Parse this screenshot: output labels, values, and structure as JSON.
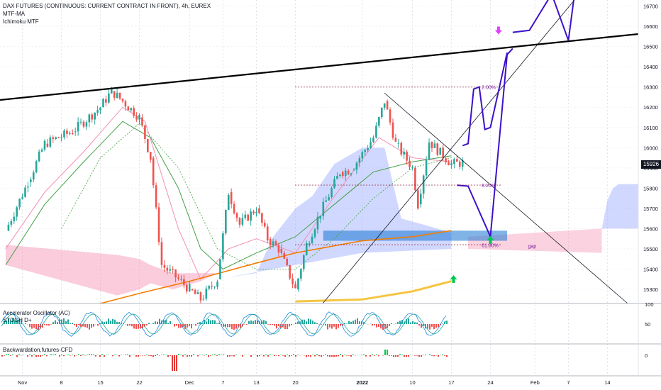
{
  "header": {
    "title": "DAX FUTURES (CONTINUOUS: CURRENT CONTRACT IN FRONT), 4h, EUREX",
    "indicator1": "MTF-MA",
    "indicator2": "Ichimoku MTF",
    "last_price": "15926"
  },
  "panes": {
    "oscillator_label1": "Accelerator Oscillator (AC)",
    "oscillator_label2": "STOCH D+",
    "backwardation_label": "Backwardation,futures-CFD"
  },
  "colors": {
    "up_candle": "#26a69a",
    "down_candle": "#ef5350",
    "channel_line": "#000000",
    "projection": "#3d11c9",
    "orange_ma": "#f57c00",
    "yellow_ma": "#f5c542",
    "cloud_blue": "#8c9eff",
    "cloud_pink": "#f48fb1",
    "fib_line": "#7b1fa2",
    "arrow_up": "#00c853",
    "arrow_down": "#e040fb"
  },
  "chart_data": {
    "type": "candlestick",
    "title": "DAX FUTURES (CONTINUOUS: CURRENT CONTRACT IN FRONT), 4h, EUREX",
    "y_ticks": [
      15300,
      15400,
      15500,
      15600,
      15700,
      15800,
      15900,
      16000,
      16100,
      16200,
      16300,
      16400,
      16500,
      16600,
      16700
    ],
    "x_ticks": [
      "Nov",
      "8",
      "15",
      "22",
      "Dec",
      "7",
      "13",
      "20",
      "2022",
      "10",
      "17",
      "24",
      "Feb",
      "7",
      "14"
    ],
    "ylim": [
      15230,
      16730
    ],
    "price_path": [
      {
        "date": "2021-10-29",
        "price": 15590
      },
      {
        "date": "2021-11-02",
        "price": 15830
      },
      {
        "date": "2021-11-05",
        "price": 16020
      },
      {
        "date": "2021-11-10",
        "price": 16080
      },
      {
        "date": "2021-11-15",
        "price": 16200
      },
      {
        "date": "2021-11-17",
        "price": 16280
      },
      {
        "date": "2021-11-19",
        "price": 16230
      },
      {
        "date": "2021-11-22",
        "price": 16150
      },
      {
        "date": "2021-11-24",
        "price": 15950
      },
      {
        "date": "2021-11-26",
        "price": 15420
      },
      {
        "date": "2021-11-29",
        "price": 15350
      },
      {
        "date": "2021-12-01",
        "price": 15300
      },
      {
        "date": "2021-12-03",
        "price": 15250
      },
      {
        "date": "2021-12-06",
        "price": 15350
      },
      {
        "date": "2021-12-08",
        "price": 15780
      },
      {
        "date": "2021-12-10",
        "price": 15620
      },
      {
        "date": "2021-12-13",
        "price": 15700
      },
      {
        "date": "2021-12-15",
        "price": 15550
      },
      {
        "date": "2021-12-17",
        "price": 15500
      },
      {
        "date": "2021-12-20",
        "price": 15300
      },
      {
        "date": "2021-12-22",
        "price": 15520
      },
      {
        "date": "2021-12-24",
        "price": 15650
      },
      {
        "date": "2021-12-28",
        "price": 15880
      },
      {
        "date": "2021-12-30",
        "price": 15890
      },
      {
        "date": "2022-01-03",
        "price": 16050
      },
      {
        "date": "2022-01-05",
        "price": 16230
      },
      {
        "date": "2022-01-07",
        "price": 16020
      },
      {
        "date": "2022-01-10",
        "price": 15900
      },
      {
        "date": "2022-01-11",
        "price": 15720
      },
      {
        "date": "2022-01-13",
        "price": 16030
      },
      {
        "date": "2022-01-17",
        "price": 15920
      },
      {
        "date": "2022-01-19",
        "price": 15926
      }
    ],
    "levels": [
      {
        "label": "2.00%",
        "price": 16300
      },
      {
        "label": "8.20%",
        "price": 15815
      },
      {
        "label": "61.80%",
        "price": 15520
      }
    ],
    "annotations": [
      "gap"
    ],
    "projection_path": [
      {
        "date": "2022-01-18",
        "price": 15815
      },
      {
        "date": "2022-01-20",
        "price": 15810
      },
      {
        "date": "2022-01-24",
        "price": 15560
      },
      {
        "date": "2022-01-27",
        "price": 16460
      },
      {
        "date": "2022-01-28",
        "price": 16490
      }
    ],
    "projection_path_2": [
      {
        "date": "2022-01-19",
        "price": 16010
      },
      {
        "date": "2022-01-20",
        "price": 16020
      },
      {
        "date": "2022-01-21",
        "price": 16290
      },
      {
        "date": "2022-01-22",
        "price": 16300
      },
      {
        "date": "2022-01-23",
        "price": 16090
      },
      {
        "date": "2022-01-24",
        "price": 16100
      },
      {
        "date": "2022-01-27",
        "price": 16470
      }
    ],
    "projection_path_3": [
      {
        "date": "2022-01-28",
        "price": 16570
      },
      {
        "date": "2022-01-31",
        "price": 16580
      },
      {
        "date": "2022-02-04",
        "price": 16760
      },
      {
        "date": "2022-02-07",
        "price": 16530
      },
      {
        "date": "2022-02-08",
        "price": 16740
      }
    ],
    "oscillator_ticks": [
      "100",
      "50"
    ],
    "backwardation_ticks": [
      "0"
    ]
  }
}
